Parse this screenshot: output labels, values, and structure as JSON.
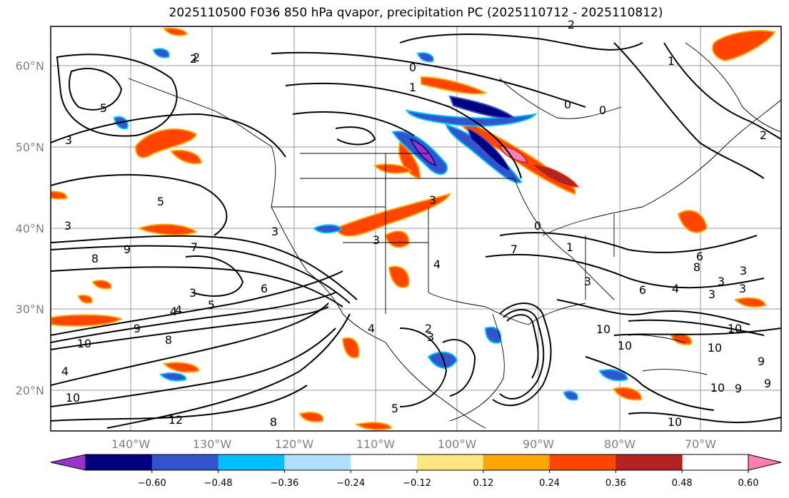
{
  "title": "2025110500 F036 850 hPa qvapor, precipitation PC (2025110712 - 2025110812)",
  "map": {
    "lat_labels": [
      "60°N",
      "50°N",
      "40°N",
      "30°N",
      "20°N"
    ],
    "lon_labels": [
      "140°W",
      "130°W",
      "120°W",
      "110°W",
      "100°W",
      "90°W",
      "80°W",
      "70°W"
    ],
    "contour_labels": [
      "2",
      "5",
      "3",
      "5",
      "9",
      "8",
      "7",
      "3",
      "6",
      "4",
      "3",
      "5",
      "8",
      "9",
      "10",
      "4",
      "10",
      "12",
      "5",
      "8",
      "0",
      "1",
      "0",
      "0",
      "3",
      "3",
      "4",
      "3",
      "0",
      "2",
      "1",
      "3",
      "2",
      "9",
      "10",
      "10",
      "10",
      "9",
      "10",
      "9",
      "10",
      "8",
      "3",
      "3",
      "4",
      "4",
      "2",
      "7",
      "6",
      "3",
      "3",
      "10",
      "4",
      "6",
      "3",
      "2",
      "1"
    ]
  },
  "colorbar": {
    "tick_labels": [
      "−0.60",
      "−0.48",
      "−0.36",
      "−0.24",
      "−0.12",
      "0.12",
      "0.24",
      "0.36",
      "0.48",
      "0.60"
    ],
    "colors": [
      "#9933cc",
      "#000080",
      "#3355cc",
      "#00bfff",
      "#b0e0ff",
      "#ffffff",
      "#ffe680",
      "#ffa500",
      "#ff4500",
      "#b22222",
      "#ff80b0"
    ]
  },
  "colors": {
    "positive_shade": "#ff4500",
    "positive_light": "#ffa500",
    "negative_shade": "#3355cc",
    "contour": "#000000",
    "grid": "#999999"
  }
}
